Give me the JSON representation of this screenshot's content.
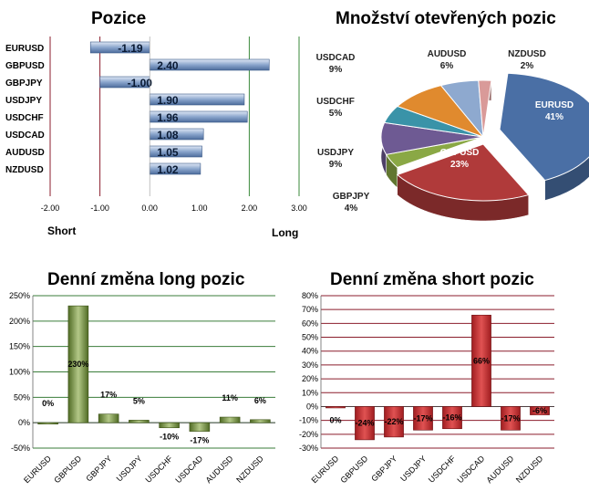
{
  "colors": {
    "blue_bar": "#7d99c4",
    "green_bar": "#6f8c3a",
    "red_bar": "#c0282c",
    "grid_green": "#3a7d3a",
    "grid_red": "#8b1d2c",
    "short_line": "#8b1d2c",
    "long_line": "#3a8a3a"
  },
  "chart_data": [
    {
      "type": "bar",
      "orientation": "horizontal",
      "title": "Pozice",
      "categories": [
        "EURUSD",
        "GBPUSD",
        "GBPJPY",
        "USDJPY",
        "USDCHF",
        "USDCAD",
        "AUDUSD",
        "NZDUSD"
      ],
      "values": [
        -1.19,
        2.4,
        -1.0,
        1.9,
        1.96,
        1.08,
        1.05,
        1.02
      ],
      "value_labels": [
        "-1.19",
        "2.40",
        "-1.00",
        "1.90",
        "1.96",
        "1.08",
        "1.05",
        "1.02"
      ],
      "xlim": [
        -2.0,
        3.0
      ],
      "xticks": [
        "-2.00",
        "-1.00",
        "0.00",
        "1.00",
        "2.00",
        "3.00"
      ],
      "annotations": {
        "left": "Short",
        "right": "Long"
      },
      "reference_lines": [
        -1.0,
        2.0
      ]
    },
    {
      "type": "pie",
      "title": "Množství otevřených pozic",
      "slices": [
        {
          "name": "EURUSD",
          "value": 41,
          "label": "41%",
          "color": "#4a6fa5"
        },
        {
          "name": "GBPUSD",
          "value": 23,
          "label": "23%",
          "color": "#b03a3a"
        },
        {
          "name": "GBPJPY",
          "value": 4,
          "label": "4%",
          "color": "#8aa845"
        },
        {
          "name": "USDJPY",
          "value": 9,
          "label": "9%",
          "color": "#6e5a93"
        },
        {
          "name": "USDCHF",
          "value": 5,
          "label": "5%",
          "color": "#3a93a8"
        },
        {
          "name": "USDCAD",
          "value": 9,
          "label": "9%",
          "color": "#e08a2e"
        },
        {
          "name": "AUDUSD",
          "value": 6,
          "label": "6%",
          "color": "#8ea9cf"
        },
        {
          "name": "NZDUSD",
          "value": 2,
          "label": "2%",
          "color": "#d99a99"
        }
      ]
    },
    {
      "type": "bar",
      "title": "Denní změna long pozic",
      "categories": [
        "EURUSD",
        "GBPUSD",
        "GBPJPY",
        "USDJPY",
        "USDCHF",
        "USDCAD",
        "AUDUSD",
        "NZDUSD"
      ],
      "values": [
        0,
        230,
        17,
        5,
        -10,
        -17,
        11,
        6
      ],
      "value_labels": [
        "0%",
        "230%",
        "17%",
        "5%",
        "-10%",
        "-17%",
        "11%",
        "6%"
      ],
      "ylim": [
        -50,
        250
      ],
      "yticks": [
        "250%",
        "200%",
        "150%",
        "100%",
        "50%",
        "0%",
        "-50%"
      ]
    },
    {
      "type": "bar",
      "title": "Denní změna short pozic",
      "categories": [
        "EURUSD",
        "GBPUSD",
        "GBPJPY",
        "USDJPY",
        "USDCHF",
        "USDCAD",
        "AUDUSD",
        "NZDUSD"
      ],
      "values": [
        0,
        -24,
        -22,
        -17,
        -16,
        66,
        -17,
        -6
      ],
      "value_labels": [
        "0%",
        "-24%",
        "-22%",
        "-17%",
        "-16%",
        "66%",
        "-17%",
        "-6%"
      ],
      "ylim": [
        -30,
        80
      ],
      "yticks": [
        "80%",
        "70%",
        "60%",
        "50%",
        "40%",
        "30%",
        "20%",
        "10%",
        "0%",
        "-10%",
        "-20%",
        "-30%"
      ]
    }
  ]
}
